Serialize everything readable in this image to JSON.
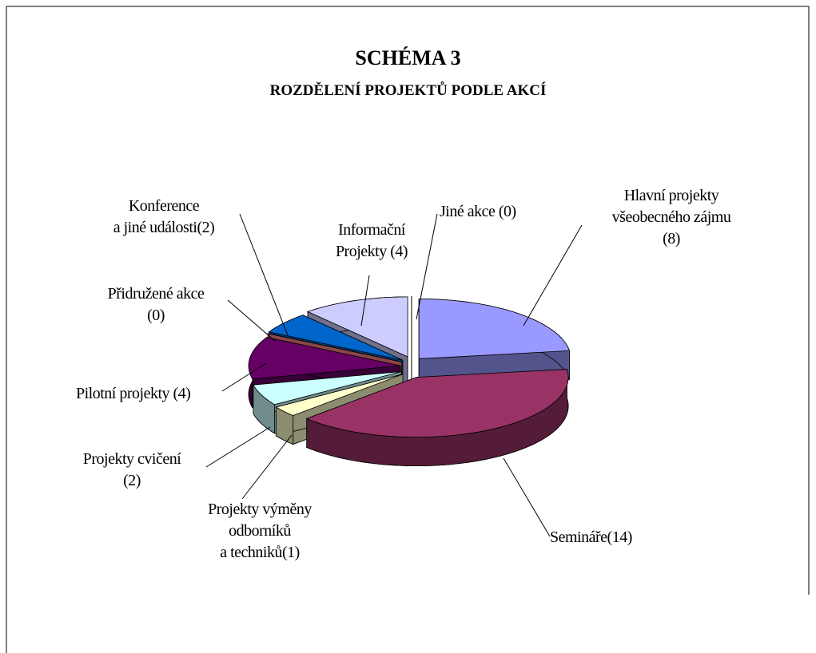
{
  "chart_data": {
    "type": "pie3d",
    "title": "SCHÉMA 3",
    "subtitle": "ROZDĚLENÍ PROJEKTŮ PODLE AKCÍ",
    "categories": [
      "Hlavní projekty\nvšeobecného zájmu",
      "Semináře",
      "Projekty výměny\nodborníků\na techniků",
      "Projekty cvičení",
      "Pilotní projekty",
      "Přidružené akce",
      "Konference\na jiné události",
      "Informační\nProjekty",
      "Jiné akce"
    ],
    "values": [
      8,
      14,
      1,
      2,
      4,
      0,
      2,
      4,
      0
    ],
    "value_labels": [
      "(8)",
      "(14)",
      "(1)",
      "(2)",
      "(4)",
      "(0)",
      "(2)",
      "(4)",
      "(0)"
    ],
    "colors": [
      "#9999ff",
      "#993366",
      "#ffffcc",
      "#ccffff",
      "#660066",
      "#ff8080",
      "#0066cc",
      "#ccccff",
      "#ffffff"
    ]
  }
}
